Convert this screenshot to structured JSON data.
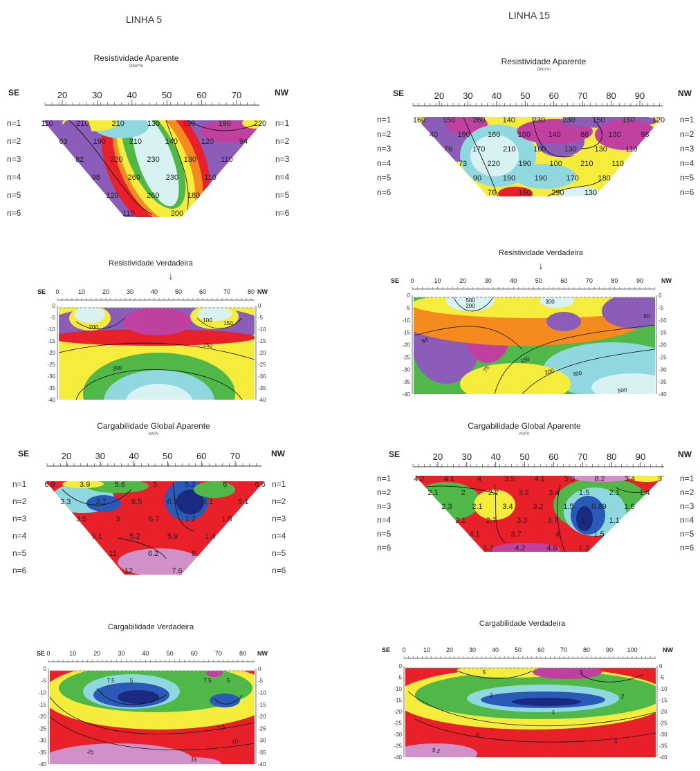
{
  "columns": [
    {
      "title": "LINHA 5",
      "ra": {
        "title": "Resistividade Aparente",
        "unit": "Ohm*m",
        "left_label": "SE",
        "right_label": "NW",
        "x_ticks": [
          "20",
          "30",
          "40",
          "50",
          "60",
          "70"
        ],
        "levels": [
          "n=1",
          "n=2",
          "n=3",
          "n=4",
          "n=5",
          "n=6"
        ],
        "values": [
          [
            "110",
            "210",
            "210",
            "130",
            "190",
            "190",
            "220"
          ],
          [
            "63",
            "190",
            "210",
            "140",
            "120",
            "94"
          ],
          [
            "82",
            "220",
            "230",
            "130",
            "110"
          ],
          [
            "98",
            "260",
            "230",
            "110"
          ],
          [
            "120",
            "260",
            "180"
          ],
          [
            "110",
            "200"
          ]
        ]
      },
      "rv": {
        "title": "Resistividade Verdadeira",
        "left_label": "SE",
        "right_label": "NW",
        "x_ticks": [
          "0",
          "10",
          "20",
          "30",
          "40",
          "50",
          "60",
          "70",
          "80"
        ],
        "depth_ticks": [
          "0",
          "-5",
          "-10",
          "-15",
          "-20",
          "-25",
          "-30",
          "-35",
          "-40"
        ],
        "contour_labels": [
          "200",
          "100",
          "150",
          "200",
          "150"
        ]
      },
      "ca": {
        "title": "Cargabilidade Global Aparente",
        "unit": "mV/V",
        "left_label": "SE",
        "right_label": "NW",
        "x_ticks": [
          "20",
          "30",
          "40",
          "50",
          "60",
          "70"
        ],
        "levels": [
          "n=1",
          "n=2",
          "n=3",
          "n=4",
          "n=5",
          "n=6"
        ],
        "values": [
          [
            "6.9",
            "3.9",
            "5.6",
            "5",
            "5.3",
            "6",
            "6.6"
          ],
          [
            "3.3",
            "2.7",
            "6.5",
            "6.3",
            "6.1",
            "5.1"
          ],
          [
            "3.5",
            "3",
            "6.7",
            "1.2",
            "1.8"
          ],
          [
            "9.1",
            "5.2",
            "5.9",
            "1.4"
          ],
          [
            "11",
            "6.2",
            "8"
          ],
          [
            "12",
            "7.6"
          ]
        ]
      },
      "cv": {
        "title": "Cargabilidade Verdadeira",
        "left_label": "SE",
        "right_label": "NW",
        "x_ticks": [
          "0",
          "10",
          "20",
          "30",
          "40",
          "50",
          "60",
          "70",
          "80"
        ],
        "depth_ticks": [
          "0",
          "-5",
          "-10",
          "-15",
          "-20",
          "-25",
          "-30",
          "-35",
          "-40"
        ],
        "contour_labels": [
          "7.5",
          "5",
          "7.5",
          "5",
          "7.5",
          "10",
          "20",
          "15"
        ]
      }
    },
    {
      "title": "LINHA 15",
      "ra": {
        "title": "Resistividade Aparente",
        "unit": "Ohm*m",
        "left_label": "SE",
        "right_label": "NW",
        "x_ticks": [
          "20",
          "30",
          "40",
          "50",
          "60",
          "70",
          "80",
          "90"
        ],
        "levels": [
          "n=1",
          "n=2",
          "n=3",
          "n=4",
          "n=5",
          "n=6"
        ],
        "values": [
          [
            "160",
            "150",
            "260",
            "140",
            "230",
            "230",
            "150",
            "150",
            "120"
          ],
          [
            "40",
            "190",
            "160",
            "100",
            "140",
            "86",
            "130",
            "98"
          ],
          [
            "76",
            "170",
            "210",
            "100",
            "130",
            "130",
            "110"
          ],
          [
            "73",
            "220",
            "190",
            "100",
            "210",
            "110"
          ],
          [
            "90",
            "190",
            "190",
            "170",
            "180"
          ],
          [
            "76",
            "190",
            "290",
            "130"
          ]
        ]
      },
      "rv": {
        "title": "Resistividade Verdadeira",
        "left_label": "SE",
        "right_label": "NW",
        "x_ticks": [
          "0",
          "10",
          "20",
          "30",
          "40",
          "50",
          "60",
          "70",
          "80",
          "90"
        ],
        "depth_ticks": [
          "0",
          "-5",
          "-10",
          "-15",
          "-20",
          "-25",
          "-30",
          "-35",
          "-40"
        ],
        "contour_labels": [
          "500",
          "200",
          "300",
          "50",
          "50",
          "75",
          "150",
          "200",
          "300",
          "500"
        ]
      },
      "ca": {
        "title": "Cargabilidade Global Aparente",
        "unit": "mV/V",
        "left_label": "SE",
        "right_label": "NW",
        "x_ticks": [
          "20",
          "30",
          "40",
          "50",
          "60",
          "70",
          "80",
          "90"
        ],
        "levels": [
          "n=1",
          "n=2",
          "n=3",
          "n=4",
          "n=5",
          "n=6"
        ],
        "values": [
          [
            "4.2",
            "4.1",
            "4",
            "3.5",
            "4.1",
            "5.9",
            "8.2",
            "3.4",
            "3"
          ],
          [
            "2.1",
            "2",
            "2.7",
            "3.2",
            "3.4",
            "1.5",
            "2.1",
            "1.4"
          ],
          [
            "2.3",
            "2.1",
            "3.4",
            "3.2",
            "1.5",
            "0.89",
            "1.6"
          ],
          [
            "2.1",
            "2.7",
            "3.3",
            "3.7",
            "1",
            "1.1"
          ],
          [
            "4.1",
            "3.7",
            "4",
            "1.5"
          ],
          [
            "5.7",
            "4.2",
            "4.6",
            "1.3"
          ]
        ]
      },
      "cv": {
        "title": "Cargabilidade Verdadeira",
        "left_label": "SE",
        "right_label": "NW",
        "x_ticks": [
          "0",
          "10",
          "20",
          "30",
          "40",
          "50",
          "60",
          "70",
          "80",
          "90",
          "100"
        ],
        "depth_ticks": [
          "0",
          "-5",
          "-10",
          "-15",
          "-20",
          "-25",
          "-30",
          "-35",
          "-40"
        ],
        "contour_labels": [
          "5",
          "5",
          "2",
          "1",
          "2",
          "6",
          "5",
          "9.2"
        ]
      }
    }
  ],
  "colors": {
    "purple": "#8b5cb8",
    "magenta": "#c040a0",
    "red": "#e8202a",
    "orange": "#f58a1f",
    "yellow": "#f6ec3c",
    "green": "#4fb848",
    "cyan": "#8fd8e0",
    "lightcyan": "#d8f2f4",
    "blue": "#2a5ab8",
    "darkblue": "#1a2a80",
    "pink": "#d090c8"
  }
}
